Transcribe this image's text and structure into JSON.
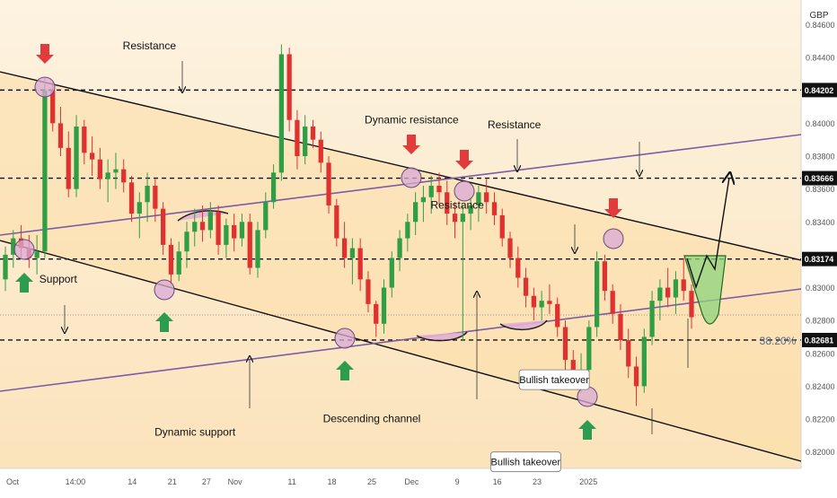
{
  "chart_data": {
    "type": "candlestick",
    "currency": "GBP",
    "y_ticks": [
      0.82,
      0.822,
      0.824,
      0.826,
      0.828,
      0.83,
      0.832,
      0.834,
      0.836,
      0.838,
      0.84,
      0.842,
      0.844,
      0.846
    ],
    "y_tick_labels": [
      "0.82000",
      "0.82200",
      "0.82400",
      "0.82600",
      "0.82800",
      "0.83000",
      "0.83200",
      "0.83400",
      "0.83600",
      "0.83800",
      "0.84000",
      "0.84200",
      "0.84400",
      "0.84600"
    ],
    "ylim": [
      0.819,
      0.8475
    ],
    "x_range_days": [
      0,
      132
    ],
    "x_ticks": [
      {
        "label": "Oct",
        "day": 0
      },
      {
        "label": "14:00",
        "day": 11
      },
      {
        "label": "14",
        "day": 21
      },
      {
        "label": "21",
        "day": 28
      },
      {
        "label": "27",
        "day": 34
      },
      {
        "label": "Nov",
        "day": 39
      },
      {
        "label": "11",
        "day": 49
      },
      {
        "label": "18",
        "day": 56
      },
      {
        "label": "25",
        "day": 63
      },
      {
        "label": "Dec",
        "day": 70
      },
      {
        "label": "9",
        "day": 78
      },
      {
        "label": "16",
        "day": 85
      },
      {
        "label": "23",
        "day": 92
      },
      {
        "label": "2025",
        "day": 101
      }
    ],
    "levels": [
      {
        "value": 0.84202,
        "label": "0.84202"
      },
      {
        "value": 0.83666,
        "label": "0.83666"
      },
      {
        "value": 0.83174,
        "label": "0.83174"
      },
      {
        "value": 0.82681,
        "label": "0.82681"
      }
    ],
    "fib_label": "38.20%",
    "fib_value": 0.82681,
    "annotations": [
      {
        "text": "Resistance",
        "day": 24,
        "value": 0.8445
      },
      {
        "text": "Dynamic resistance",
        "day": 70,
        "value": 0.84
      },
      {
        "text": "Resistance",
        "day": 88,
        "value": 0.8397
      },
      {
        "text": "Resistance",
        "day": 78,
        "value": 0.8348
      },
      {
        "text": "Support",
        "day": 8,
        "value": 0.8303
      },
      {
        "text": "Dynamic support",
        "day": 32,
        "value": 0.821
      },
      {
        "text": "Descending channel",
        "day": 63,
        "value": 0.8218
      },
      {
        "text": "Bullish takeover",
        "day": 95,
        "value": 0.8244
      },
      {
        "text": "Bullish takeover",
        "day": 90,
        "value": 0.8194
      }
    ],
    "candles": [
      [
        0.8305,
        0.8325,
        0.8298,
        0.832
      ],
      [
        0.832,
        0.8335,
        0.8312,
        0.833
      ],
      [
        0.833,
        0.8338,
        0.8318,
        0.8324
      ],
      [
        0.8324,
        0.8332,
        0.8312,
        0.8318
      ],
      [
        0.8318,
        0.8332,
        0.8308,
        0.8322
      ],
      [
        0.8322,
        0.8428,
        0.8318,
        0.842
      ],
      [
        0.842,
        0.8425,
        0.8395,
        0.84
      ],
      [
        0.84,
        0.841,
        0.838,
        0.8385
      ],
      [
        0.8385,
        0.8395,
        0.8355,
        0.836
      ],
      [
        0.836,
        0.8405,
        0.8355,
        0.8398
      ],
      [
        0.8398,
        0.8402,
        0.8375,
        0.8382
      ],
      [
        0.8382,
        0.8392,
        0.8368,
        0.8378
      ],
      [
        0.8378,
        0.8385,
        0.836,
        0.8366
      ],
      [
        0.8366,
        0.8378,
        0.8352,
        0.837
      ],
      [
        0.837,
        0.8382,
        0.836,
        0.8372
      ],
      [
        0.8372,
        0.8378,
        0.8358,
        0.8364
      ],
      [
        0.8364,
        0.8368,
        0.834,
        0.8345
      ],
      [
        0.8345,
        0.8358,
        0.833,
        0.8352
      ],
      [
        0.8352,
        0.837,
        0.834,
        0.8362
      ],
      [
        0.8362,
        0.8366,
        0.834,
        0.8348
      ],
      [
        0.8348,
        0.8352,
        0.832,
        0.8326
      ],
      [
        0.8326,
        0.833,
        0.8302,
        0.8308
      ],
      [
        0.8308,
        0.8328,
        0.8304,
        0.8322
      ],
      [
        0.8322,
        0.834,
        0.8312,
        0.8334
      ],
      [
        0.8334,
        0.8348,
        0.8325,
        0.834
      ],
      [
        0.834,
        0.835,
        0.8328,
        0.8335
      ],
      [
        0.8335,
        0.8352,
        0.833,
        0.8346
      ],
      [
        0.8346,
        0.835,
        0.832,
        0.8326
      ],
      [
        0.8326,
        0.8342,
        0.8318,
        0.8338
      ],
      [
        0.8338,
        0.8345,
        0.8322,
        0.833
      ],
      [
        0.833,
        0.8345,
        0.8325,
        0.834
      ],
      [
        0.834,
        0.8345,
        0.8308,
        0.8312
      ],
      [
        0.8312,
        0.834,
        0.8306,
        0.8335
      ],
      [
        0.8335,
        0.8358,
        0.833,
        0.8352
      ],
      [
        0.8352,
        0.8375,
        0.8348,
        0.837
      ],
      [
        0.837,
        0.8448,
        0.8365,
        0.8442
      ],
      [
        0.8442,
        0.8446,
        0.8395,
        0.8402
      ],
      [
        0.8402,
        0.8408,
        0.8372,
        0.838
      ],
      [
        0.838,
        0.8405,
        0.8375,
        0.8398
      ],
      [
        0.8398,
        0.8402,
        0.8385,
        0.839
      ],
      [
        0.839,
        0.8395,
        0.837,
        0.8376
      ],
      [
        0.8376,
        0.838,
        0.8345,
        0.835
      ],
      [
        0.835,
        0.8354,
        0.8325,
        0.833
      ],
      [
        0.833,
        0.834,
        0.8312,
        0.8318
      ],
      [
        0.8318,
        0.833,
        0.8302,
        0.8324
      ],
      [
        0.8324,
        0.833,
        0.8298,
        0.8305
      ],
      [
        0.8305,
        0.831,
        0.8285,
        0.829
      ],
      [
        0.829,
        0.8292,
        0.827,
        0.8278
      ],
      [
        0.8278,
        0.8305,
        0.8272,
        0.83
      ],
      [
        0.83,
        0.8322,
        0.8294,
        0.8318
      ],
      [
        0.8318,
        0.8335,
        0.831,
        0.833
      ],
      [
        0.833,
        0.8345,
        0.8322,
        0.834
      ],
      [
        0.834,
        0.8358,
        0.8332,
        0.8352
      ],
      [
        0.8352,
        0.8362,
        0.834,
        0.8355
      ],
      [
        0.8355,
        0.8368,
        0.8345,
        0.8362
      ],
      [
        0.8362,
        0.837,
        0.835,
        0.8358
      ],
      [
        0.8358,
        0.8365,
        0.8338,
        0.8345
      ],
      [
        0.8345,
        0.8352,
        0.833,
        0.834
      ],
      [
        0.834,
        0.835,
        0.8268,
        0.8345
      ],
      [
        0.8345,
        0.8355,
        0.8335,
        0.835
      ],
      [
        0.835,
        0.8362,
        0.834,
        0.8358
      ],
      [
        0.8358,
        0.8366,
        0.8345,
        0.8352
      ],
      [
        0.8352,
        0.8358,
        0.8338,
        0.8344
      ],
      [
        0.8344,
        0.8348,
        0.8325,
        0.833
      ],
      [
        0.833,
        0.8334,
        0.8312,
        0.8318
      ],
      [
        0.8318,
        0.8325,
        0.83,
        0.8306
      ],
      [
        0.8306,
        0.8312,
        0.8288,
        0.8295
      ],
      [
        0.8295,
        0.83,
        0.828,
        0.8288
      ],
      [
        0.8288,
        0.8298,
        0.828,
        0.8292
      ],
      [
        0.8292,
        0.8302,
        0.8284,
        0.829
      ],
      [
        0.829,
        0.8294,
        0.827,
        0.8276
      ],
      [
        0.8276,
        0.828,
        0.825,
        0.8256
      ],
      [
        0.8256,
        0.8262,
        0.8238,
        0.8244
      ],
      [
        0.8244,
        0.826,
        0.8236,
        0.825
      ],
      [
        0.825,
        0.828,
        0.8244,
        0.8276
      ],
      [
        0.8276,
        0.8322,
        0.827,
        0.8316
      ],
      [
        0.8316,
        0.832,
        0.8292,
        0.8298
      ],
      [
        0.8298,
        0.8302,
        0.8278,
        0.8284
      ],
      [
        0.8284,
        0.829,
        0.8262,
        0.8268
      ],
      [
        0.8268,
        0.8275,
        0.8245,
        0.8252
      ],
      [
        0.8252,
        0.8258,
        0.8228,
        0.824
      ],
      [
        0.824,
        0.8275,
        0.8236,
        0.827
      ],
      [
        0.827,
        0.8298,
        0.8265,
        0.8292
      ],
      [
        0.8292,
        0.8305,
        0.828,
        0.83
      ],
      [
        0.83,
        0.8312,
        0.8288,
        0.8294
      ],
      [
        0.8294,
        0.831,
        0.8284,
        0.8305
      ],
      [
        0.8305,
        0.8318,
        0.8292,
        0.8298
      ],
      [
        0.8298,
        0.8302,
        0.8275,
        0.8282
      ]
    ]
  }
}
